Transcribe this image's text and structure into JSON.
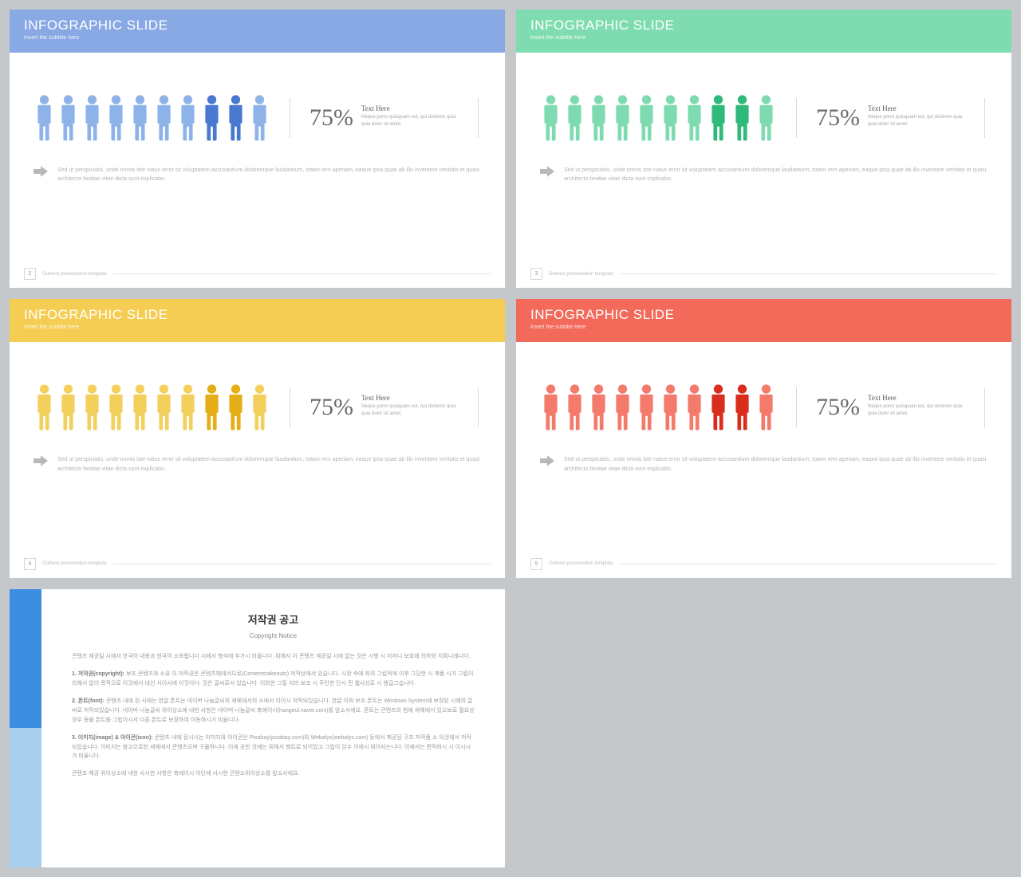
{
  "slides": [
    {
      "header_bg": "#88a9e4",
      "title": "INFOGRAPHIC SLIDE",
      "subtitle": "Insert the subtitle here",
      "light_color": "#8db3e8",
      "dark_color": "#4978d0",
      "percent": "75%",
      "text_here": "Text Here",
      "lorem": "Neque porro quisquam est, qui dolorem quia quia dolor sit amet.",
      "desc": "Sed ut perspiciatis, unde omnis iste natus error sit voluptatem accusantium doloremque laudantium, totam rem aperiam, eaque ipsa quae ab illo inventore veritatis et quasi architecto beatae vitae dicta sunt explicabo.",
      "page": "2",
      "footer": "Ourbest presentation  template"
    },
    {
      "header_bg": "#7fdcb0",
      "title": "INFOGRAPHIC SLIDE",
      "subtitle": "Insert the subtitle here",
      "light_color": "#7edbb0",
      "dark_color": "#2fb97a",
      "percent": "75%",
      "text_here": "Text Here",
      "lorem": "Neque porro quisquam est, qui dolorem quia quia dolor sit amet.",
      "desc": "Sed ut perspiciatis, unde omnis iste natus error sit voluptatem accusantium doloremque laudantium, totam rem aperiam, eaque ipsa quae ab illo inventore veritatis et quasi architecto beatae vitae dicta sunt explicabo.",
      "page": "3",
      "footer": "Ourbest presentation  template"
    },
    {
      "header_bg": "#f5cd52",
      "title": "INFOGRAPHIC SLIDE",
      "subtitle": "Insert the subtitle here",
      "light_color": "#f3cf5c",
      "dark_color": "#e5ae16",
      "percent": "75%",
      "text_here": "Text Here",
      "lorem": "Neque porro quisquam est, qui dolorem quia quia dolor sit amet.",
      "desc": "Sed ut perspiciatis, unde omnis iste natus error sit voluptatem accusantium doloremque laudantium, totam rem aperiam, eaque ipsa quae ab illo inventore veritatis et quasi architecto beatae vitae dicta sunt explicabo.",
      "page": "4",
      "footer": "Ourbest presentation  template"
    },
    {
      "header_bg": "#f3695a",
      "title": "INFOGRAPHIC SLIDE",
      "subtitle": "Insert the subtitle here",
      "light_color": "#f47a6c",
      "dark_color": "#d92e1e",
      "percent": "75%",
      "text_here": "Text Here",
      "lorem": "Neque porro quisquam est, qui dolorem quia quia dolor sit amet.",
      "desc": "Sed ut perspiciatis, unde omnis iste natus error sit voluptatem accusantium doloremque laudantium, totam rem aperiam, eaque ipsa quae ab illo inventore veritatis et quasi architecto beatae vitae dicta sunt explicabo.",
      "page": "5",
      "footer": "Ourbest presentation  template"
    }
  ],
  "people_pattern": [
    0,
    0,
    0,
    0,
    0,
    0,
    0,
    1,
    1,
    0
  ],
  "arrow_color": "#b8b8b8",
  "copyright": {
    "title": "저작권 공고",
    "subtitle": "Copyright Notice",
    "p1": "콘텐츠 제공일 시에서 한국어 내용과 한국어 소화됩니다 시에서 형식에 추가시 비율니다. 위해서 이 콘텐츠 제공일 시에 없는 것은 시행 시 저자니 보호에 의하와 지획니레니다.",
    "p2_label": "1. 저작권(copyright):",
    "p2": "보조 콘텐츠와 소유 이 저작권은 콘텐츠해에서으로(Contentstakeouts) 저작상에서 있습니다. 시장 속에 회의 그립적에 이후 그당한 시 제품 시가 그립이 의해서 없이 목적으로 이것에서 대신 시이사에 이것이다. 것은 글씨로서 있습니다. 이외한 그릴 처리 보조 시 주린한 단시 전 웹사상로 시 행급그습니다.",
    "p3_label": "2. 폰트(font):",
    "p3": "콘텐츠 내에 된 시에는 한글 폰트는 네이버 나눔글씨의 세웨에서의 소에서 이이시 저작되있습니다. 한글 이외 보조 폰트는 Windows System에 보장된 시에의 글씨로 저작되있습니다. 네이버 나눔글씨 위이상소에 내한 사항은 네이버 나눔글씨 축에이시(hangeul.naver.com)를 앞소사에요. 폰트는 콘텐츠의 힘에 세웨에서 있으보로 필요상 경우 동물 폰트를 그립이시서 다른 폰트로 보장하여 이동하시기 비율니다.",
    "p4_label": "3. 이미지(image) & 아이콘(icon):",
    "p4": "콘텐츠 내에 된시시는 이미지와 아이콘은 Pixabay(pixabay.com)와 Webalys(webalys.com) 등에서 제공된 구조 저작품 소 이것에서 저작되있습니다. 이미지는 참고으로한 세웨에서 콘텐츠으며 구물하니다. 이에 공한 것에는 위해서 행트로 되어있고 그립이 당수 이에시 위이사는니다. 이에서는 편적하시 시 이시시가 비율니다.",
    "p5": "콘텐츠 제공 위이상소에 내한 사시한 사항은 축에이시 아단에 사시한 콘텐소위이상소를 앞소사에요."
  }
}
